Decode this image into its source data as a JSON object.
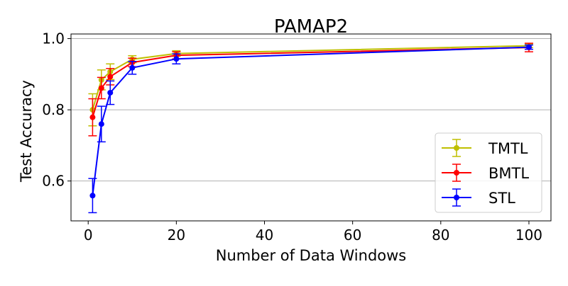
{
  "chart_data": {
    "type": "line",
    "title": "PAMAP2",
    "xlabel": "Number of Data Windows",
    "ylabel": "Test Accuracy",
    "xlim": [
      -3.9,
      105
    ],
    "ylim": [
      0.488,
      1.013
    ],
    "xticks": [
      0,
      20,
      40,
      60,
      80,
      100
    ],
    "xtick_labels": [
      "0",
      "20",
      "40",
      "60",
      "80",
      "100"
    ],
    "yticks": [
      0.6,
      0.8,
      1.0
    ],
    "ytick_labels": [
      "0.6",
      "0.8",
      "1.0"
    ],
    "grid": "horizontal",
    "legend_position": "lower-right",
    "x": [
      1,
      3,
      5,
      10,
      20,
      100
    ],
    "series": [
      {
        "name": "TMTL",
        "color": "#bfbf00",
        "values": [
          0.8,
          0.884,
          0.907,
          0.942,
          0.958,
          0.98
        ],
        "errors": [
          0.045,
          0.028,
          0.022,
          0.01,
          0.008,
          0.005
        ]
      },
      {
        "name": "BMTL",
        "color": "#ff0000",
        "values": [
          0.779,
          0.861,
          0.893,
          0.933,
          0.953,
          0.975
        ],
        "errors": [
          0.052,
          0.03,
          0.023,
          0.012,
          0.01,
          0.012
        ]
      },
      {
        "name": "STL",
        "color": "#0000ff",
        "values": [
          0.559,
          0.76,
          0.848,
          0.918,
          0.943,
          0.976
        ],
        "errors": [
          0.048,
          0.05,
          0.033,
          0.018,
          0.014,
          0.006
        ]
      }
    ]
  }
}
